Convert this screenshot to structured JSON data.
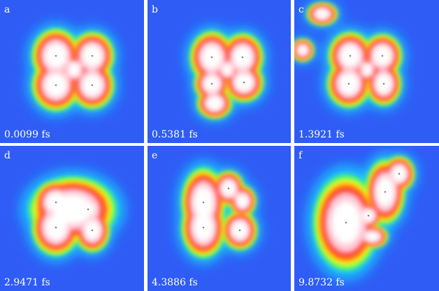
{
  "panels": [
    {
      "label": "a",
      "time": "0.0099 fs"
    },
    {
      "label": "b",
      "time": "0.5381 fs"
    },
    {
      "label": "c",
      "time": "1.3921 fs"
    },
    {
      "label": "d",
      "time": "2.9471 fs"
    },
    {
      "label": "e",
      "time": "4.3886 fs"
    },
    {
      "label": "f",
      "time": "9.8732 fs"
    }
  ]
}
